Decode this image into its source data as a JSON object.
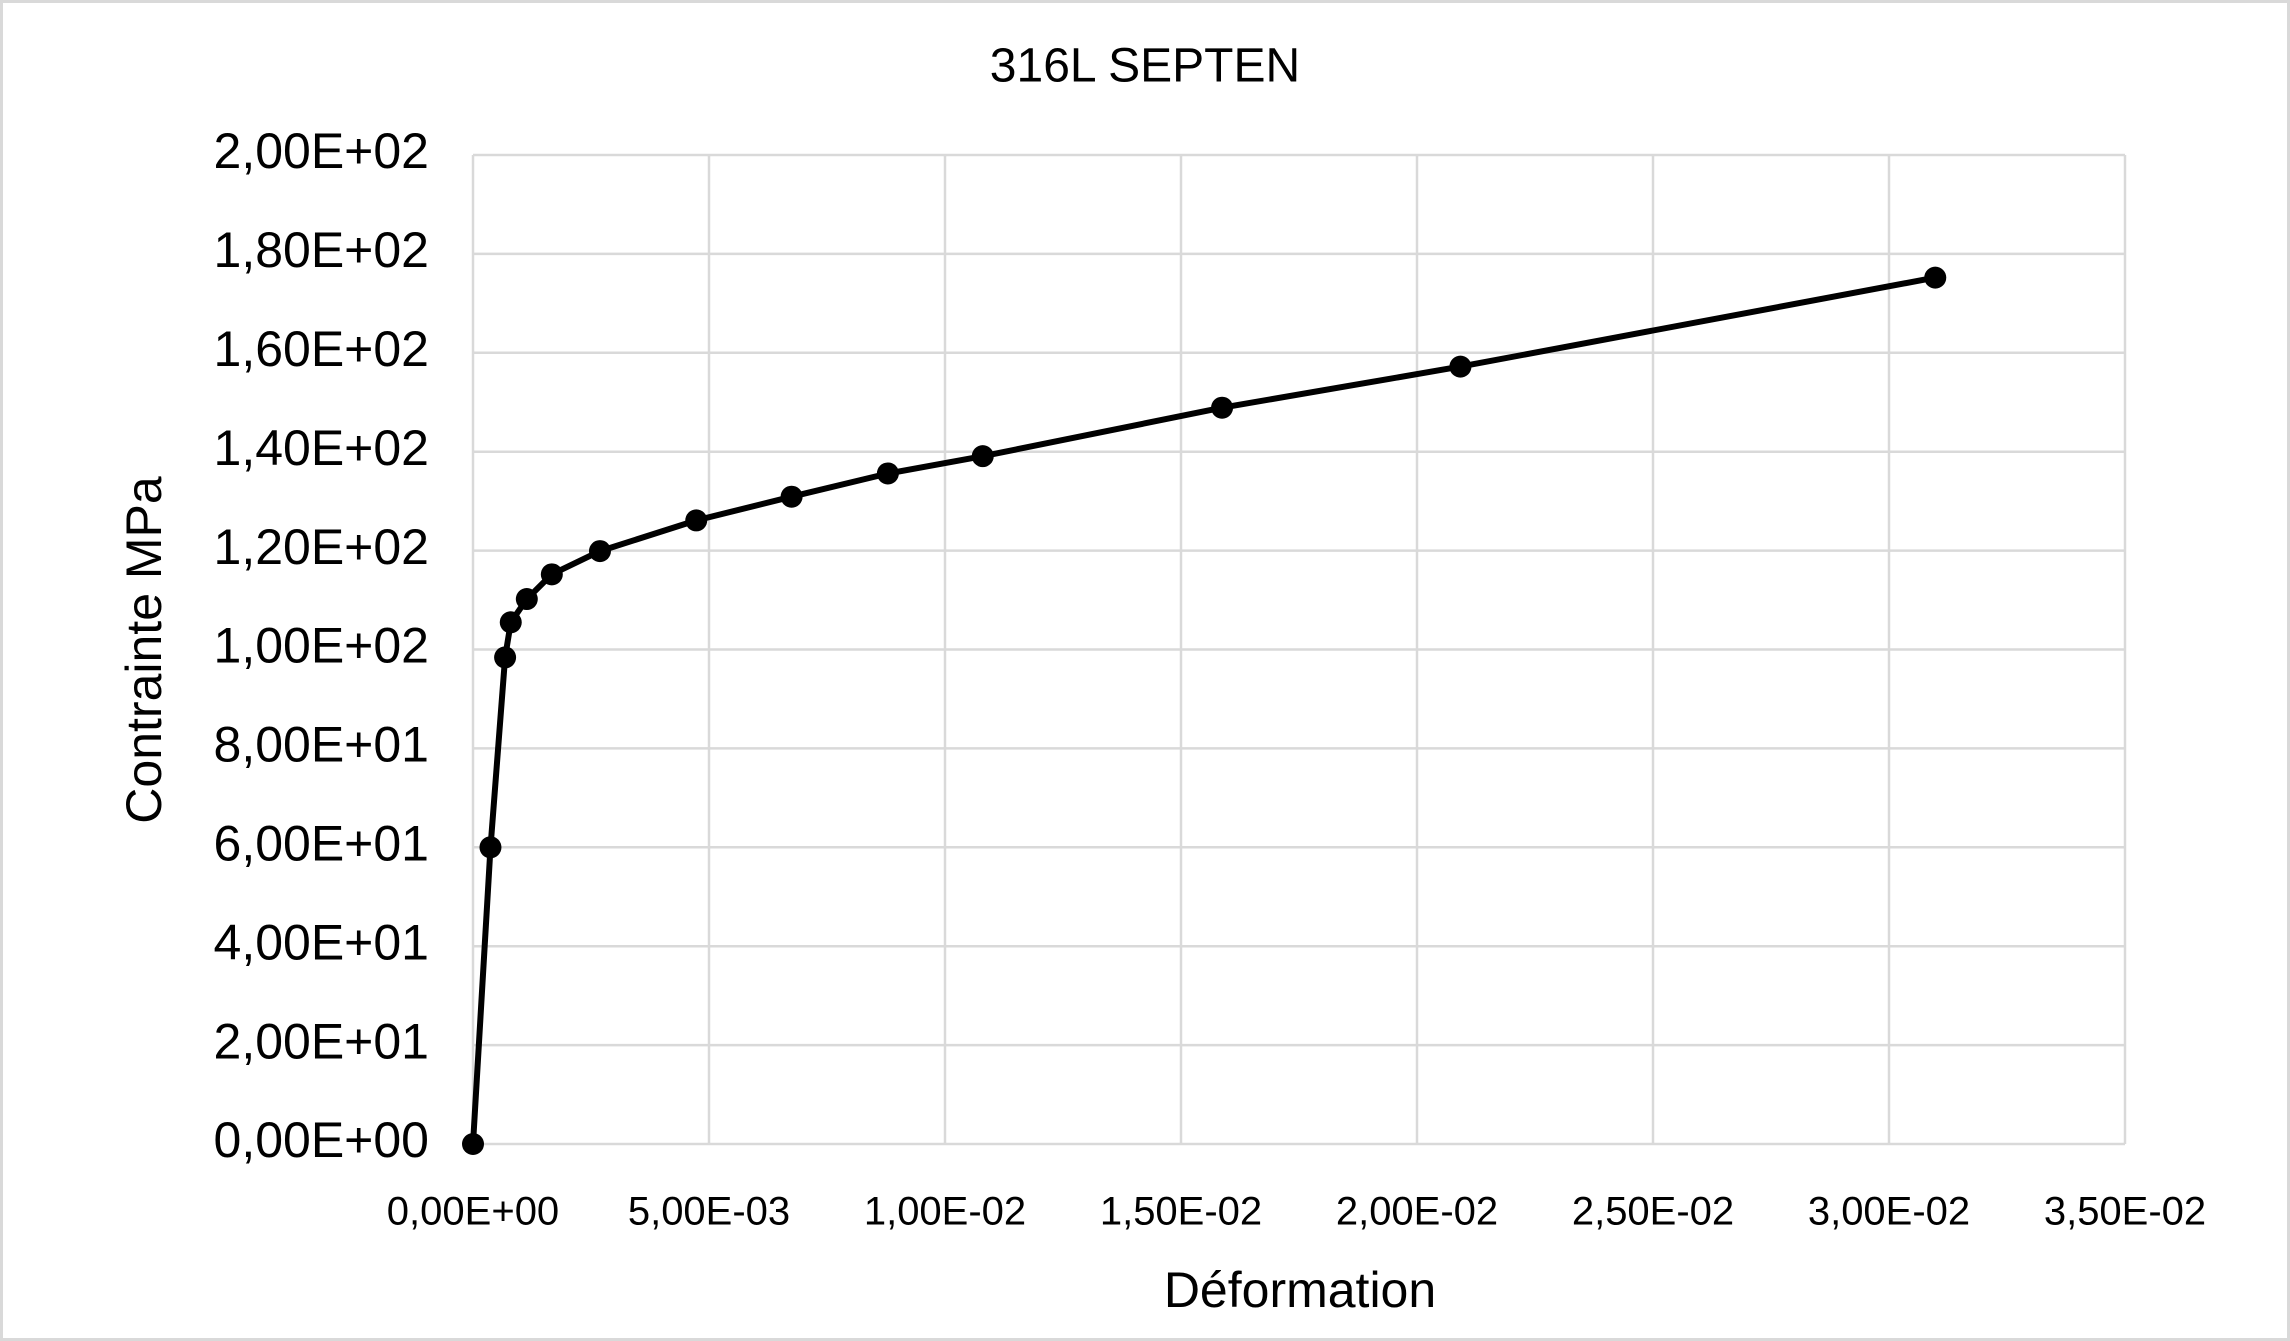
{
  "chart_data": {
    "type": "scatter",
    "title": "316L SEPTEN",
    "x_label": "Déformation",
    "y_label": "Contrainte MPa",
    "series": [
      {
        "color": "#000000",
        "x": [
          0,
          0.00037,
          0.00068,
          0.0008,
          0.00114,
          0.00167,
          0.00269,
          0.00473,
          0.00675,
          0.00879,
          0.0108,
          0.01587,
          0.02092,
          0.03098
        ],
        "values": [
          0,
          60,
          98.4,
          105.5,
          110.2,
          115.2,
          119.9,
          126.1,
          130.9,
          135.6,
          139.1,
          148.9,
          157.2,
          175.2
        ]
      }
    ],
    "xlim": [
      0,
      0.035
    ],
    "xticks": [
      {
        "value": 0,
        "label": "0,00E+00"
      },
      {
        "value": 0.005,
        "label": "5,00E-03"
      },
      {
        "value": 0.01,
        "label": "1,00E-02"
      },
      {
        "value": 0.015,
        "label": "1,50E-02"
      },
      {
        "value": 0.02,
        "label": "2,00E-02"
      },
      {
        "value": 0.025,
        "label": "2,50E-02"
      },
      {
        "value": 0.03,
        "label": "3,00E-02"
      },
      {
        "value": 0.035,
        "label": "3,50E-02"
      }
    ],
    "ylim": [
      0,
      200
    ],
    "yticks": [
      {
        "value": 0,
        "label": "0,00E+00"
      },
      {
        "value": 20,
        "label": "2,00E+01"
      },
      {
        "value": 40,
        "label": "4,00E+01"
      },
      {
        "value": 60,
        "label": "6,00E+01"
      },
      {
        "value": 80,
        "label": "8,00E+01"
      },
      {
        "value": 100,
        "label": "1,00E+02"
      },
      {
        "value": 120,
        "label": "1,20E+02"
      },
      {
        "value": 140,
        "label": "1,40E+02"
      },
      {
        "value": 160,
        "label": "1,60E+02"
      },
      {
        "value": 180,
        "label": "1,80E+02"
      },
      {
        "value": 200,
        "label": "2,00E+02"
      }
    ],
    "grid": true
  }
}
